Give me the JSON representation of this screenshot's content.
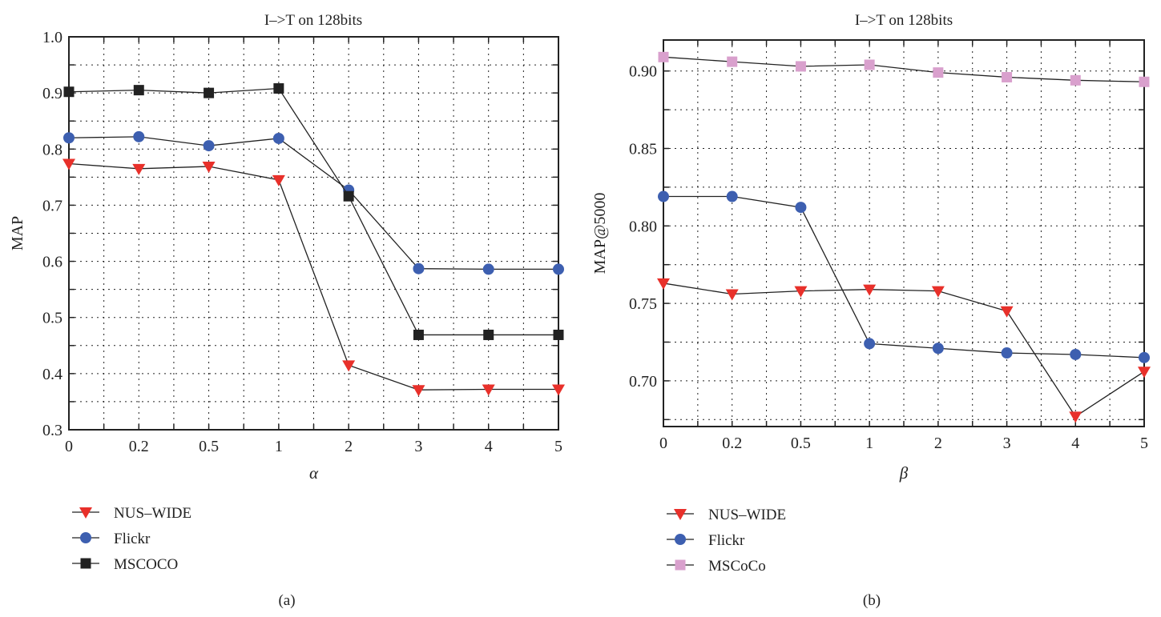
{
  "chart_data": [
    {
      "type": "line",
      "panel_label": "(a)",
      "title": "I–>T on 128bits",
      "xlabel": "α",
      "ylabel": "MAP",
      "categories": [
        "0",
        "0.2",
        "0.5",
        "1",
        "2",
        "3",
        "4",
        "5"
      ],
      "ylim": [
        0.3,
        1.0
      ],
      "yticks": [
        "0.3",
        "0.4",
        "0.5",
        "0.6",
        "0.7",
        "0.8",
        "0.9",
        "1.0"
      ],
      "grid": true,
      "legend_position": "bottom",
      "series": [
        {
          "name": "NUS–WIDE",
          "marker": "triangle-down",
          "color": "#e8302a",
          "values": [
            0.774,
            0.765,
            0.769,
            0.745,
            0.415,
            0.371,
            0.372,
            0.372
          ]
        },
        {
          "name": "Flickr",
          "marker": "circle",
          "color": "#3d5fb0",
          "values": [
            0.82,
            0.822,
            0.806,
            0.819,
            0.727,
            0.587,
            0.586,
            0.586
          ]
        },
        {
          "name": "MSCOCO",
          "marker": "square",
          "color": "#222222",
          "values": [
            0.902,
            0.905,
            0.9,
            0.908,
            0.716,
            0.469,
            0.469,
            0.469
          ]
        }
      ]
    },
    {
      "type": "line",
      "panel_label": "(b)",
      "title": "I–>T on 128bits",
      "xlabel": "β",
      "ylabel": "MAP@5000",
      "categories": [
        "0",
        "0.2",
        "0.5",
        "1",
        "2",
        "3",
        "4",
        "5"
      ],
      "ylim": [
        0.6705,
        0.92
      ],
      "yticks": [
        "0.70",
        "0.75",
        "0.80",
        "0.85",
        "0.90"
      ],
      "grid": true,
      "legend_position": "bottom",
      "series": [
        {
          "name": "NUS–WIDE",
          "marker": "triangle-down",
          "color": "#e8302a",
          "values": [
            0.763,
            0.756,
            0.758,
            0.759,
            0.758,
            0.745,
            0.677,
            0.706
          ]
        },
        {
          "name": "Flickr",
          "marker": "circle",
          "color": "#3d5fb0",
          "values": [
            0.819,
            0.819,
            0.812,
            0.724,
            0.721,
            0.718,
            0.717,
            0.715
          ]
        },
        {
          "name": "MSCoCo",
          "marker": "square",
          "color": "#d9a0cd",
          "values": [
            0.909,
            0.906,
            0.903,
            0.904,
            0.899,
            0.896,
            0.894,
            0.893
          ]
        }
      ]
    }
  ]
}
